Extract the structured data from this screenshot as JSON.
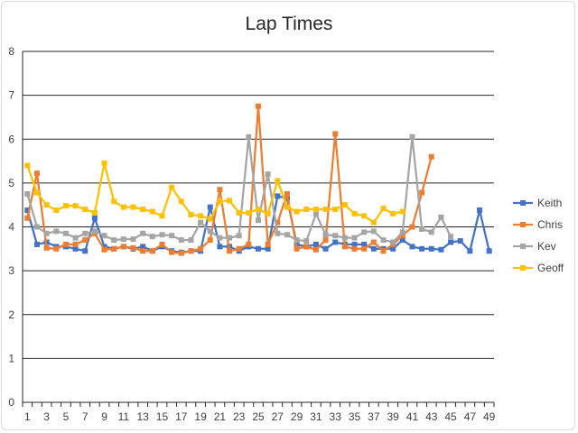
{
  "chart_data": {
    "type": "line",
    "title": "Lap Times",
    "xlabel": "",
    "ylabel": "",
    "ylim": [
      0,
      8
    ],
    "yticks": [
      0,
      1,
      2,
      3,
      4,
      5,
      6,
      7,
      8
    ],
    "xtick_labels": [
      1,
      3,
      5,
      7,
      9,
      11,
      13,
      15,
      17,
      19,
      21,
      23,
      25,
      27,
      29,
      31,
      33,
      35,
      37,
      39,
      41,
      43,
      45,
      47,
      49
    ],
    "x": [
      1,
      2,
      3,
      4,
      5,
      6,
      7,
      8,
      9,
      10,
      11,
      12,
      13,
      14,
      15,
      16,
      17,
      18,
      19,
      20,
      21,
      22,
      23,
      24,
      25,
      26,
      27,
      28,
      29,
      30,
      31,
      32,
      33,
      34,
      35,
      36,
      37,
      38,
      39,
      40,
      41,
      42,
      43,
      44,
      45,
      46,
      47,
      48,
      49
    ],
    "grid": "horizontal",
    "legend_position": "right",
    "series": [
      {
        "name": "Keith",
        "color": "#4472c4",
        "marker": "square",
        "values": [
          4.38,
          3.6,
          3.65,
          3.55,
          3.55,
          3.5,
          3.45,
          4.2,
          3.55,
          3.5,
          3.55,
          3.5,
          3.55,
          3.45,
          3.55,
          3.45,
          3.42,
          3.45,
          3.45,
          4.45,
          3.55,
          3.55,
          3.45,
          3.55,
          3.5,
          3.5,
          4.7,
          4.65,
          3.6,
          3.55,
          3.6,
          3.5,
          3.65,
          3.6,
          3.6,
          3.6,
          3.5,
          3.5,
          3.5,
          3.7,
          3.55,
          3.5,
          3.5,
          3.48,
          3.65,
          3.68,
          3.45,
          4.38,
          3.45
        ]
      },
      {
        "name": "Chris",
        "color": "#ed7d31",
        "marker": "square",
        "values": [
          4.2,
          5.22,
          3.52,
          3.5,
          3.6,
          3.6,
          3.7,
          3.85,
          3.48,
          3.5,
          3.55,
          3.52,
          3.45,
          3.45,
          3.6,
          3.42,
          3.4,
          3.45,
          3.5,
          3.7,
          4.85,
          3.45,
          3.5,
          3.6,
          6.75,
          3.6,
          4.1,
          4.75,
          3.5,
          3.55,
          3.48,
          3.7,
          6.12,
          3.55,
          3.5,
          3.5,
          3.65,
          3.45,
          3.6,
          3.8,
          4.0,
          4.78,
          5.6,
          null,
          null,
          null,
          null,
          null,
          null
        ]
      },
      {
        "name": "Kev",
        "color": "#a5a5a5",
        "marker": "square",
        "values": [
          4.75,
          4.0,
          3.85,
          3.9,
          3.85,
          3.75,
          3.85,
          3.9,
          3.8,
          3.7,
          3.72,
          3.72,
          3.85,
          3.78,
          3.82,
          3.8,
          3.7,
          3.7,
          4.1,
          3.9,
          3.75,
          3.75,
          3.8,
          6.05,
          4.15,
          5.2,
          3.85,
          3.82,
          3.7,
          3.68,
          4.3,
          3.82,
          3.8,
          3.75,
          3.75,
          3.88,
          3.9,
          3.7,
          3.65,
          3.88,
          6.05,
          3.95,
          3.88,
          4.22,
          3.78,
          null,
          null,
          null,
          null
        ]
      },
      {
        "name": "Geoff",
        "color": "#ffc000",
        "marker": "square",
        "values": [
          5.4,
          4.78,
          4.5,
          4.38,
          4.48,
          4.48,
          4.4,
          4.32,
          5.45,
          4.58,
          4.45,
          4.45,
          4.4,
          4.35,
          4.25,
          4.9,
          4.58,
          4.28,
          4.25,
          4.18,
          4.58,
          4.6,
          4.32,
          4.32,
          4.4,
          4.3,
          5.05,
          4.45,
          4.35,
          4.4,
          4.4,
          4.4,
          4.4,
          4.5,
          4.3,
          4.25,
          4.1,
          4.42,
          4.3,
          4.35,
          null,
          null,
          null,
          null,
          null,
          null,
          null,
          null,
          null
        ]
      }
    ]
  }
}
